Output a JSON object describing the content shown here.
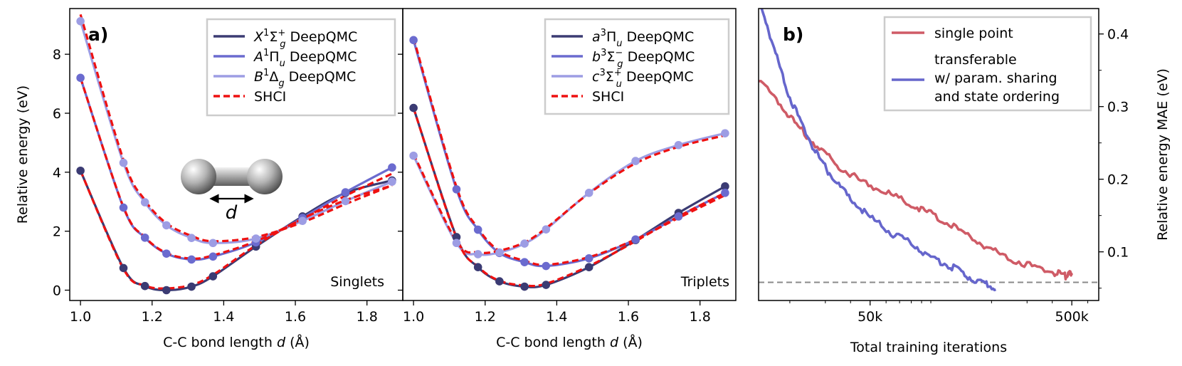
{
  "colors": {
    "X1Sigma_g": "#3b3b73",
    "A1Pi_u": "#6b6bcf",
    "B1Delta_g": "#9d9de4",
    "a3Pi_u": "#3b3b73",
    "b3Sigma_g": "#6b6bcf",
    "c3Sigma_u": "#9d9de4",
    "shci": "#ee1111",
    "single_point": "#cf5b66",
    "transferable": "#6666cc",
    "reference_line": "#8a8a8a",
    "frame": "#000000"
  },
  "chart_data": [
    {
      "id": "singlets",
      "type": "line",
      "panel_label": "a)",
      "corner_label": "Singlets",
      "xlabel": "C-C bond length",
      "xlabel_symbol": "d",
      "xlabel_unit": "(Å)",
      "ylabel": "Relative energy (eV)",
      "xlim": [
        0.97,
        1.9
      ],
      "ylim": [
        -0.35,
        9.55
      ],
      "xticks": [
        1.0,
        1.2,
        1.4,
        1.6,
        1.8
      ],
      "xtick_labels": [
        "1.0",
        "1.2",
        "1.4",
        "1.6",
        "1.8"
      ],
      "yticks": [
        0,
        2,
        4,
        6,
        8
      ],
      "ytick_labels": [
        "0",
        "2",
        "4",
        "6",
        "8"
      ],
      "x": [
        1.0,
        1.12,
        1.18,
        1.24,
        1.31,
        1.37,
        1.49,
        1.62,
        1.74,
        1.87
      ],
      "series": [
        {
          "name": "X1Σg+ DeepQMC",
          "legend_main": "X",
          "legend_sup": "1",
          "legend_rest": "Σ",
          "legend_sub": "g",
          "legend_sup2": "+",
          "legend_tail": " DeepQMC",
          "color_key": "X1Sigma_g",
          "values": [
            4.05,
            0.75,
            0.14,
            0.0,
            0.12,
            0.47,
            1.48,
            2.5,
            3.3,
            3.72
          ],
          "shci": [
            4.05,
            0.72,
            0.16,
            0.06,
            0.18,
            0.52,
            1.52,
            2.42,
            3.05,
            3.55
          ]
        },
        {
          "name": "A1Πu DeepQMC",
          "legend_main": "A",
          "legend_sup": "1",
          "legend_rest": "Π",
          "legend_sub": "u",
          "legend_sup2": "",
          "legend_tail": " DeepQMC",
          "color_key": "A1Pi_u",
          "values": [
            7.2,
            2.8,
            1.78,
            1.24,
            1.04,
            1.14,
            1.62,
            2.45,
            3.32,
            4.16
          ],
          "shci": [
            7.2,
            2.82,
            1.8,
            1.26,
            1.07,
            1.18,
            1.66,
            2.42,
            3.2,
            3.95
          ]
        },
        {
          "name": "B1Δg DeepQMC",
          "legend_main": "B",
          "legend_sup": "1",
          "legend_rest": "Δ",
          "legend_sub": "g",
          "legend_sup2": "",
          "legend_tail": " DeepQMC",
          "color_key": "B1Delta_g",
          "values": [
            9.12,
            4.32,
            2.98,
            2.2,
            1.77,
            1.6,
            1.75,
            2.35,
            3.02,
            3.68
          ],
          "shci": [
            9.35,
            4.42,
            3.05,
            2.27,
            1.84,
            1.66,
            1.8,
            2.3,
            2.92,
            3.55
          ]
        }
      ],
      "legend_shci": "SHCI",
      "legend_position": "top-right"
    },
    {
      "id": "triplets",
      "type": "line",
      "corner_label": "Triplets",
      "xlabel": "C-C bond length",
      "xlabel_symbol": "d",
      "xlabel_unit": "(Å)",
      "xlim": [
        0.97,
        1.9
      ],
      "ylim": [
        -0.35,
        9.55
      ],
      "xticks": [
        1.0,
        1.2,
        1.4,
        1.6,
        1.8
      ],
      "xtick_labels": [
        "1.0",
        "1.2",
        "1.4",
        "1.6",
        "1.8"
      ],
      "x": [
        1.0,
        1.12,
        1.18,
        1.24,
        1.31,
        1.37,
        1.49,
        1.62,
        1.74,
        1.87
      ],
      "series": [
        {
          "name": "a3Πu DeepQMC",
          "legend_main": "a",
          "legend_sup": "3",
          "legend_rest": "Π",
          "legend_sub": "u",
          "legend_sup2": "",
          "legend_tail": "  DeepQMC",
          "color_key": "a3Pi_u",
          "values": [
            6.18,
            1.8,
            0.78,
            0.3,
            0.12,
            0.18,
            0.78,
            1.7,
            2.62,
            3.52
          ],
          "shci": [
            6.18,
            1.78,
            0.8,
            0.32,
            0.16,
            0.22,
            0.82,
            1.66,
            2.5,
            3.3
          ]
        },
        {
          "name": "b3Σg− DeepQMC",
          "legend_main": "b",
          "legend_sup": "3",
          "legend_rest": "Σ",
          "legend_sub": "g",
          "legend_sup2": "−",
          "legend_tail": "  DeepQMC",
          "color_key": "b3Sigma_g",
          "values": [
            8.48,
            3.42,
            2.05,
            1.26,
            0.95,
            0.82,
            1.08,
            1.72,
            2.5,
            3.3
          ],
          "shci": [
            8.55,
            3.5,
            2.1,
            1.32,
            1.0,
            0.86,
            1.12,
            1.72,
            2.45,
            3.22
          ]
        },
        {
          "name": "c3Σu+ DeepQMC",
          "legend_main": "c",
          "legend_sup": "3",
          "legend_rest": "Σ",
          "legend_sub": "u",
          "legend_sup2": "+",
          "legend_tail": "  DeepQMC",
          "color_key": "c3Sigma_u",
          "values": [
            4.56,
            1.6,
            1.22,
            1.28,
            1.58,
            2.06,
            3.3,
            4.38,
            4.92,
            5.32
          ],
          "shci": [
            4.62,
            1.66,
            1.28,
            1.34,
            1.62,
            2.1,
            3.28,
            4.3,
            4.86,
            5.25
          ]
        }
      ],
      "legend_shci": "SHCI",
      "legend_position": "top-right"
    },
    {
      "id": "training",
      "type": "line",
      "panel_label": "b)",
      "xlabel": "Total training iterations",
      "ylabel": "Relative energy MAE (eV)",
      "xscale": "log",
      "xlim": [
        14000,
        680000
      ],
      "ylim": [
        0.033,
        0.435
      ],
      "xticks": [
        50000,
        500000
      ],
      "xtick_labels": [
        "50k",
        "500k"
      ],
      "yticks": [
        0.1,
        0.2,
        0.3,
        0.4
      ],
      "ytick_labels": [
        "0.1",
        "0.2",
        "0.3",
        "0.4"
      ],
      "yaxis_side": "right",
      "reference_line": 0.058,
      "series": [
        {
          "name": "single point",
          "legend_lines": [
            "single point"
          ],
          "color_key": "single_point",
          "x": [
            14000,
            18000,
            22000,
            28000,
            35000,
            45000,
            60000,
            80000,
            100000,
            130000,
            170000,
            220000,
            300000,
            400000,
            460000,
            480000,
            500000
          ],
          "values": [
            0.335,
            0.3,
            0.27,
            0.24,
            0.215,
            0.195,
            0.18,
            0.162,
            0.15,
            0.132,
            0.112,
            0.094,
            0.08,
            0.07,
            0.064,
            0.066,
            0.068
          ]
        },
        {
          "name": "transferable w/ param. sharing and state ordering",
          "legend_lines": [
            "transferable",
            "w/ param. sharing",
            "and state ordering"
          ],
          "color_key": "transferable",
          "x": [
            14500,
            17000,
            20000,
            24000,
            28000,
            33000,
            40000,
            50000,
            65000,
            80000,
            100000,
            125000,
            150000,
            180000,
            210000
          ],
          "values": [
            0.435,
            0.37,
            0.31,
            0.262,
            0.225,
            0.198,
            0.17,
            0.145,
            0.122,
            0.11,
            0.09,
            0.078,
            0.065,
            0.055,
            0.048
          ]
        }
      ],
      "legend_position": "top-right"
    }
  ],
  "inset": {
    "label": "d"
  }
}
